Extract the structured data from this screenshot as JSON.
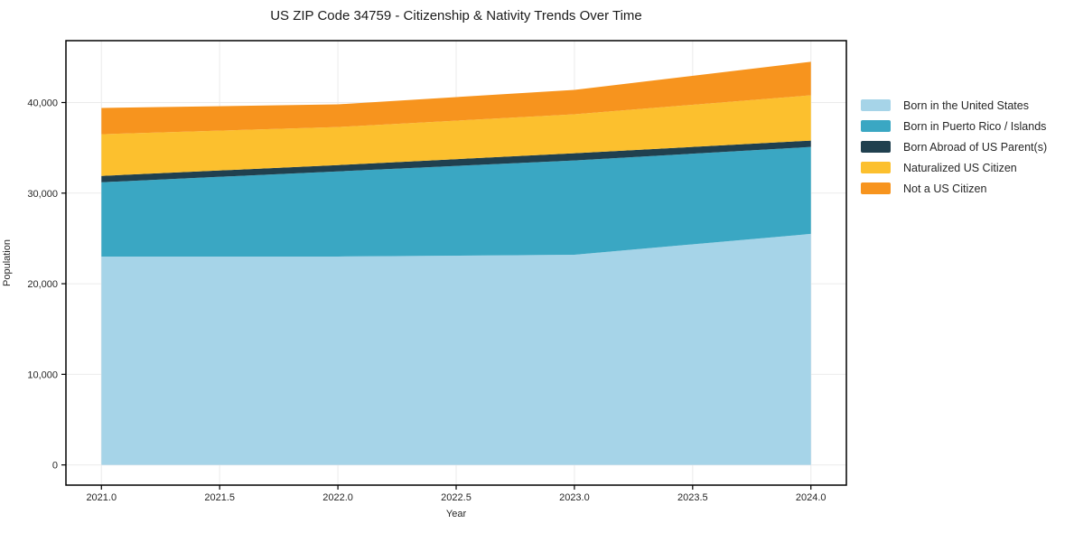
{
  "title": "US ZIP Code 34759 - Citizenship & Nativity Trends Over Time",
  "chart_data": {
    "type": "area",
    "stacked": true,
    "title": "US ZIP Code 34759 - Citizenship & Nativity Trends Over Time",
    "xlabel": "Year",
    "ylabel": "Population",
    "x": [
      2021,
      2022,
      2023,
      2024
    ],
    "series": [
      {
        "name": "Born in the United States",
        "color": "#a6d4e8",
        "values": [
          23000,
          23000,
          23200,
          25500
        ]
      },
      {
        "name": "Born in Puerto Rico / Islands",
        "color": "#3aa7c3",
        "values": [
          8200,
          9400,
          10400,
          9600
        ]
      },
      {
        "name": "Born Abroad of US Parent(s)",
        "color": "#20404f",
        "values": [
          700,
          700,
          800,
          700
        ]
      },
      {
        "name": "Naturalized US Citizen",
        "color": "#fcc02e",
        "values": [
          4600,
          4200,
          4300,
          5000
        ]
      },
      {
        "name": "Not a US Citizen",
        "color": "#f7941e",
        "values": [
          2900,
          2500,
          2700,
          3700
        ]
      }
    ],
    "stacked_totals": [
      39400,
      39800,
      41400,
      44500
    ],
    "xlim": [
      2020.85,
      2024.15
    ],
    "ylim": [
      -2230,
      46830
    ],
    "xticks": {
      "values": [
        2021.0,
        2021.5,
        2022.0,
        2022.5,
        2023.0,
        2023.5,
        2024.0
      ],
      "labels": [
        "2021.0",
        "2021.5",
        "2022.0",
        "2022.5",
        "2023.0",
        "2023.5",
        "2024.0"
      ]
    },
    "yticks": {
      "values": [
        0,
        10000,
        20000,
        30000,
        40000
      ],
      "labels": [
        "0",
        "10,000",
        "20,000",
        "30,000",
        "40,000"
      ]
    },
    "grid": true,
    "legend_position": "right-outside"
  },
  "colors": {
    "background": "#ffffff",
    "grid": "#ebebeb",
    "spine": "#000000",
    "text": "#262626"
  }
}
